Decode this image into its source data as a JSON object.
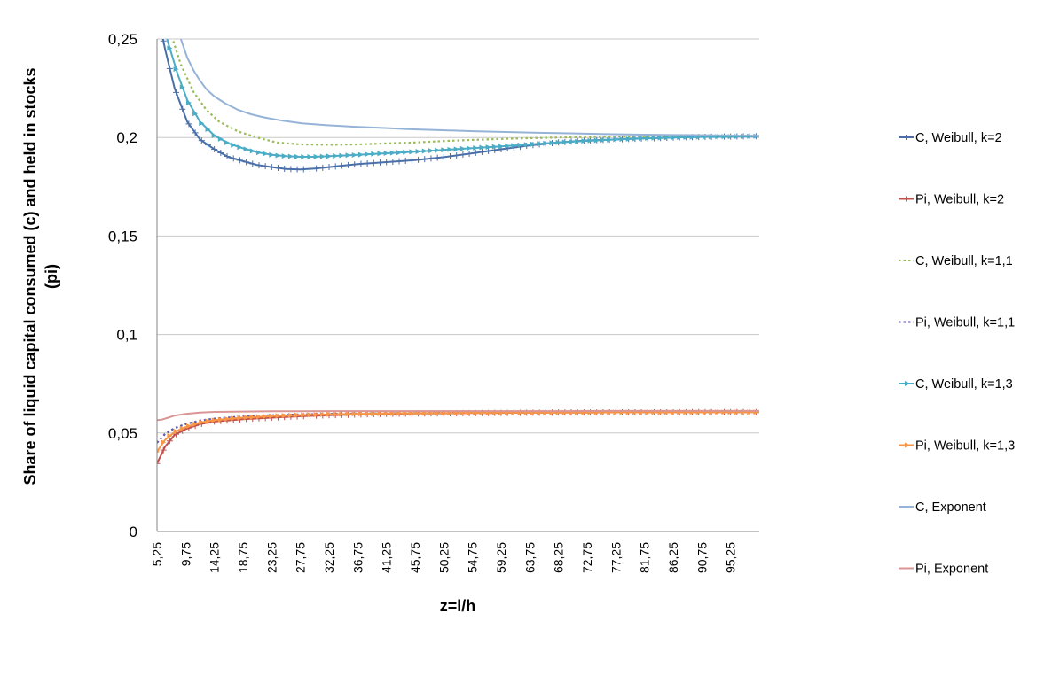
{
  "chart_data": {
    "type": "line",
    "title": "",
    "xlabel": "z=l/h",
    "ylabel_lines": [
      "Share of liquid capital consumed (c) and held in stocks",
      "(pi)"
    ],
    "x_tick_labels": [
      "5,25",
      "9,75",
      "14,25",
      "18,75",
      "23,25",
      "27,75",
      "32,25",
      "36,75",
      "41,25",
      "45,75",
      "50,25",
      "54,75",
      "59,25",
      "63,75",
      "68,25",
      "72,75",
      "77,25",
      "81,75",
      "86,25",
      "90,75",
      "95,25"
    ],
    "x_ticks": [
      5.25,
      9.75,
      14.25,
      18.75,
      23.25,
      27.75,
      32.25,
      36.75,
      41.25,
      45.75,
      50.25,
      54.75,
      59.25,
      63.75,
      68.25,
      72.75,
      77.25,
      81.75,
      86.25,
      90.75,
      95.25
    ],
    "xlim": [
      5.25,
      99.75
    ],
    "ylim": [
      0,
      0.25
    ],
    "y_ticks": [
      0,
      0.05,
      0.1,
      0.15,
      0.2,
      0.25
    ],
    "y_tick_labels": [
      "0",
      "0,05",
      "0,1",
      "0,15",
      "0,2",
      "0,25"
    ],
    "grid": "horizontal",
    "legend_position": "right",
    "series": [
      {
        "name": "C, Weibull, k=2",
        "color": "#4a6fa8",
        "dash": "solid",
        "marker": "plus",
        "x": [
          5.25,
          6.5,
          8,
          10,
          12,
          14.25,
          16.5,
          18.75,
          21,
          23.25,
          25.5,
          27.75,
          30,
          32.25,
          36.75,
          41.25,
          45.75,
          50.25,
          54.75,
          59.25,
          63.75,
          68.25,
          72.75,
          77.25,
          81.75,
          86.25,
          90.75,
          95.25,
          99.75
        ],
        "y": [
          0.265,
          0.245,
          0.225,
          0.208,
          0.199,
          0.194,
          0.19,
          0.188,
          0.186,
          0.185,
          0.184,
          0.1838,
          0.1842,
          0.185,
          0.1865,
          0.1875,
          0.1885,
          0.19,
          0.192,
          0.194,
          0.196,
          0.1975,
          0.1985,
          0.199,
          0.1995,
          0.2,
          0.2003,
          0.2005,
          0.2007
        ]
      },
      {
        "name": "Pi, Weibull, k=2",
        "color": "#c0504d",
        "dash": "solid",
        "marker": "plus",
        "x": [
          5.25,
          6.5,
          8,
          9.75,
          12,
          14.25,
          18.75,
          23.25,
          27.75,
          32.25,
          36.75,
          41.25,
          45.75,
          50.25,
          54.75,
          59.25,
          63.75,
          68.25,
          72.75,
          77.25,
          81.75,
          86.25,
          90.75,
          95.25,
          99.75
        ],
        "y": [
          0.0345,
          0.043,
          0.049,
          0.052,
          0.0545,
          0.0558,
          0.057,
          0.0578,
          0.0585,
          0.059,
          0.0594,
          0.0597,
          0.0599,
          0.06,
          0.0601,
          0.0602,
          0.0603,
          0.0604,
          0.0604,
          0.0605,
          0.0605,
          0.0605,
          0.0606,
          0.0606,
          0.0606
        ]
      },
      {
        "name": "C, Weibull, k=1,1",
        "color": "#9bbb59",
        "dash": "dotted",
        "marker": "none",
        "x": [
          5.25,
          7,
          9,
          11,
          13,
          15,
          18,
          21,
          24,
          27.75,
          32.25,
          36.75,
          41.25,
          45.75,
          50.25,
          54.75,
          59.25,
          63.75,
          68.25,
          72.75,
          77.25,
          81.75,
          86.25,
          90.75,
          95.25,
          99.75
        ],
        "y": [
          0.28,
          0.257,
          0.237,
          0.223,
          0.214,
          0.208,
          0.203,
          0.2,
          0.1975,
          0.1965,
          0.1963,
          0.1965,
          0.197,
          0.1975,
          0.1982,
          0.1988,
          0.1993,
          0.1997,
          0.2,
          0.2003,
          0.2005,
          0.2006,
          0.2007,
          0.2008,
          0.2008,
          0.2008
        ]
      },
      {
        "name": "Pi, Weibull, k=1,1",
        "color": "#5f57a8",
        "dash": "dotted",
        "marker": "none",
        "x": [
          5.25,
          6.5,
          8,
          9.75,
          12,
          14.25,
          18.75,
          23.25,
          27.75,
          32.25,
          41.25,
          50.25,
          59.25,
          68.25,
          77.25,
          86.25,
          95.25,
          99.75
        ],
        "y": [
          0.045,
          0.0495,
          0.0525,
          0.0545,
          0.0563,
          0.0573,
          0.0584,
          0.059,
          0.0594,
          0.0597,
          0.06,
          0.0602,
          0.0604,
          0.0605,
          0.0606,
          0.0606,
          0.0607,
          0.0607
        ]
      },
      {
        "name": "C, Weibull, k=1,3",
        "color": "#4bacc6",
        "dash": "solid",
        "marker": "arrow",
        "x": [
          5.25,
          7,
          8.5,
          10,
          12,
          14.25,
          16.5,
          18.75,
          21,
          23.25,
          25.5,
          27.75,
          30,
          32.25,
          36.75,
          41.25,
          45.75,
          50.25,
          54.75,
          59.25,
          63.75,
          68.25,
          72.75,
          77.25,
          81.75,
          86.25,
          90.75,
          95.25,
          99.75
        ],
        "y": [
          0.27,
          0.248,
          0.232,
          0.219,
          0.208,
          0.201,
          0.197,
          0.1945,
          0.1925,
          0.1912,
          0.1905,
          0.1902,
          0.1902,
          0.1905,
          0.1912,
          0.192,
          0.1928,
          0.1937,
          0.1946,
          0.1955,
          0.1965,
          0.1975,
          0.1983,
          0.199,
          0.1996,
          0.2,
          0.2003,
          0.2005,
          0.2007
        ]
      },
      {
        "name": "Pi, Weibull, k=1,3",
        "color": "#f79646",
        "dash": "solid",
        "marker": "arrow",
        "x": [
          5.25,
          6.5,
          8,
          9.75,
          12,
          14.25,
          18.75,
          23.25,
          27.75,
          32.25,
          41.25,
          50.25,
          59.25,
          68.25,
          77.25,
          86.25,
          95.25,
          99.75
        ],
        "y": [
          0.0405,
          0.0465,
          0.0505,
          0.053,
          0.0553,
          0.0565,
          0.0578,
          0.0586,
          0.0591,
          0.0595,
          0.0599,
          0.0601,
          0.0603,
          0.0604,
          0.0605,
          0.0605,
          0.0606,
          0.0606
        ]
      },
      {
        "name": "C, Exponent",
        "color": "#95b3d7",
        "dash": "solid",
        "marker": "none",
        "x": [
          9,
          10,
          11,
          12,
          13,
          14.25,
          16,
          18,
          20,
          22,
          25,
          28,
          32,
          36,
          41,
          45,
          50,
          55,
          60,
          65,
          70,
          75,
          80,
          85,
          90,
          95.25,
          99.75
        ],
        "y": [
          0.25,
          0.2405,
          0.234,
          0.2288,
          0.2245,
          0.2208,
          0.2172,
          0.214,
          0.2118,
          0.2102,
          0.2085,
          0.2072,
          0.2062,
          0.2055,
          0.2048,
          0.2042,
          0.2037,
          0.2032,
          0.2028,
          0.2024,
          0.2021,
          0.2018,
          0.2015,
          0.2013,
          0.2012,
          0.201,
          0.2009
        ]
      },
      {
        "name": "Pi, Exponent",
        "color": "#d99694",
        "dash": "solid",
        "marker": "none",
        "x": [
          5.25,
          6,
          7,
          8,
          9.75,
          12,
          14.25,
          18.75,
          23.25,
          27.75,
          32.25,
          41.25,
          50.25,
          59.25,
          68.25,
          77.25,
          86.25,
          95.25,
          99.75
        ],
        "y": [
          0.0565,
          0.0568,
          0.0578,
          0.0588,
          0.0597,
          0.0604,
          0.0607,
          0.0609,
          0.061,
          0.061,
          0.0611,
          0.0611,
          0.0611,
          0.0611,
          0.0611,
          0.0612,
          0.0612,
          0.0612,
          0.0612
        ]
      }
    ]
  }
}
